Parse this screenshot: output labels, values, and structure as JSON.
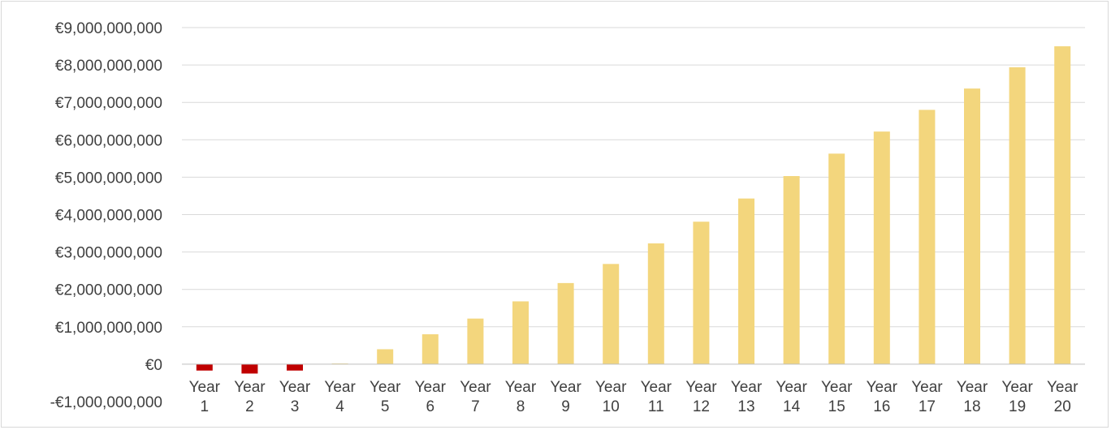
{
  "chart_data": {
    "type": "bar",
    "title": "",
    "xlabel": "",
    "ylabel": "",
    "categories": [
      "Year 1",
      "Year 2",
      "Year 3",
      "Year 4",
      "Year 5",
      "Year 6",
      "Year 7",
      "Year 8",
      "Year 9",
      "Year 10",
      "Year 11",
      "Year 12",
      "Year 13",
      "Year 14",
      "Year 15",
      "Year 16",
      "Year 17",
      "Year 18",
      "Year 19",
      "Year 20"
    ],
    "values": [
      -170000000,
      -250000000,
      -170000000,
      20000000,
      400000000,
      800000000,
      1220000000,
      1680000000,
      2170000000,
      2680000000,
      3230000000,
      3810000000,
      4430000000,
      5030000000,
      5630000000,
      6220000000,
      6800000000,
      7370000000,
      7940000000,
      8500000000
    ],
    "ylim": [
      -1000000000,
      9000000000
    ],
    "yticks": [
      9000000000,
      8000000000,
      7000000000,
      6000000000,
      5000000000,
      4000000000,
      3000000000,
      2000000000,
      1000000000,
      0,
      -1000000000
    ],
    "ytick_labels": [
      "€9,000,000,000",
      "€8,000,000,000",
      "€7,000,000,000",
      "€6,000,000,000",
      "€5,000,000,000",
      "€4,000,000,000",
      "€3,000,000,000",
      "€2,000,000,000",
      "€1,000,000,000",
      "€0",
      "-€1,000,000,000"
    ],
    "grid": true,
    "colors": {
      "positive": "#f3d67d",
      "negative": "#c00000",
      "grid": "#d9d9d9",
      "axis": "#bfbfbf"
    }
  }
}
